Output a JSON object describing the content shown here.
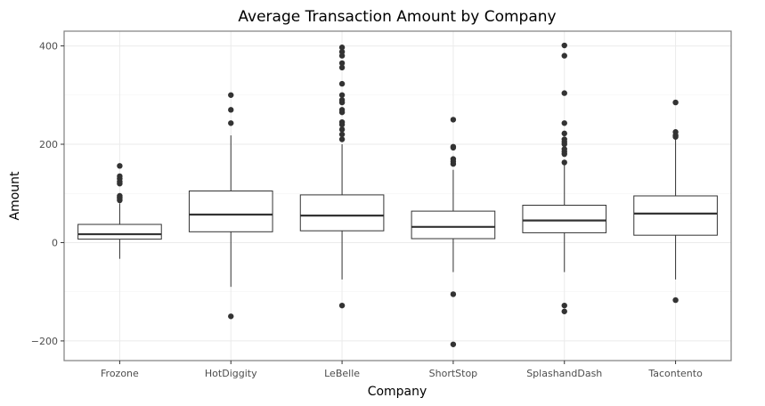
{
  "chart_data": {
    "type": "boxplot",
    "title": "Average Transaction Amount by Company",
    "xlabel": "Company",
    "ylabel": "Amount",
    "ylim": [
      -240,
      430
    ],
    "yticks": [
      -200,
      0,
      200,
      400
    ],
    "grid": true,
    "categories": [
      "Frozone",
      "HotDiggity",
      "LeBelle",
      "ShortStop",
      "SplashandDash",
      "Tacontento"
    ],
    "boxes": [
      {
        "category": "Frozone",
        "whisker_low": -33,
        "q1": 7,
        "median": 17,
        "q3": 37,
        "whisker_high": 80,
        "outliers": [
          156,
          135,
          130,
          124,
          120,
          95,
          92,
          90,
          86
        ]
      },
      {
        "category": "HotDiggity",
        "whisker_low": -90,
        "q1": 22,
        "median": 57,
        "q3": 105,
        "whisker_high": 218,
        "outliers": [
          300,
          270,
          243,
          -150
        ]
      },
      {
        "category": "LeBelle",
        "whisker_low": -75,
        "q1": 24,
        "median": 55,
        "q3": 97,
        "whisker_high": 200,
        "outliers": [
          397,
          388,
          380,
          365,
          356,
          323,
          300,
          290,
          285,
          270,
          265,
          245,
          240,
          230,
          220,
          210,
          -128
        ]
      },
      {
        "category": "ShortStop",
        "whisker_low": -60,
        "q1": 8,
        "median": 32,
        "q3": 64,
        "whisker_high": 148,
        "outliers": [
          250,
          195,
          193,
          170,
          165,
          160,
          -105,
          -207
        ]
      },
      {
        "category": "SplashandDash",
        "whisker_low": -60,
        "q1": 20,
        "median": 45,
        "q3": 76,
        "whisker_high": 160,
        "outliers": [
          401,
          380,
          304,
          243,
          222,
          210,
          205,
          200,
          190,
          185,
          180,
          163,
          -128,
          -140
        ]
      },
      {
        "category": "Tacontento",
        "whisker_low": -75,
        "q1": 15,
        "median": 59,
        "q3": 95,
        "whisker_high": 210,
        "outliers": [
          285,
          225,
          218,
          215,
          -117
        ]
      }
    ]
  }
}
